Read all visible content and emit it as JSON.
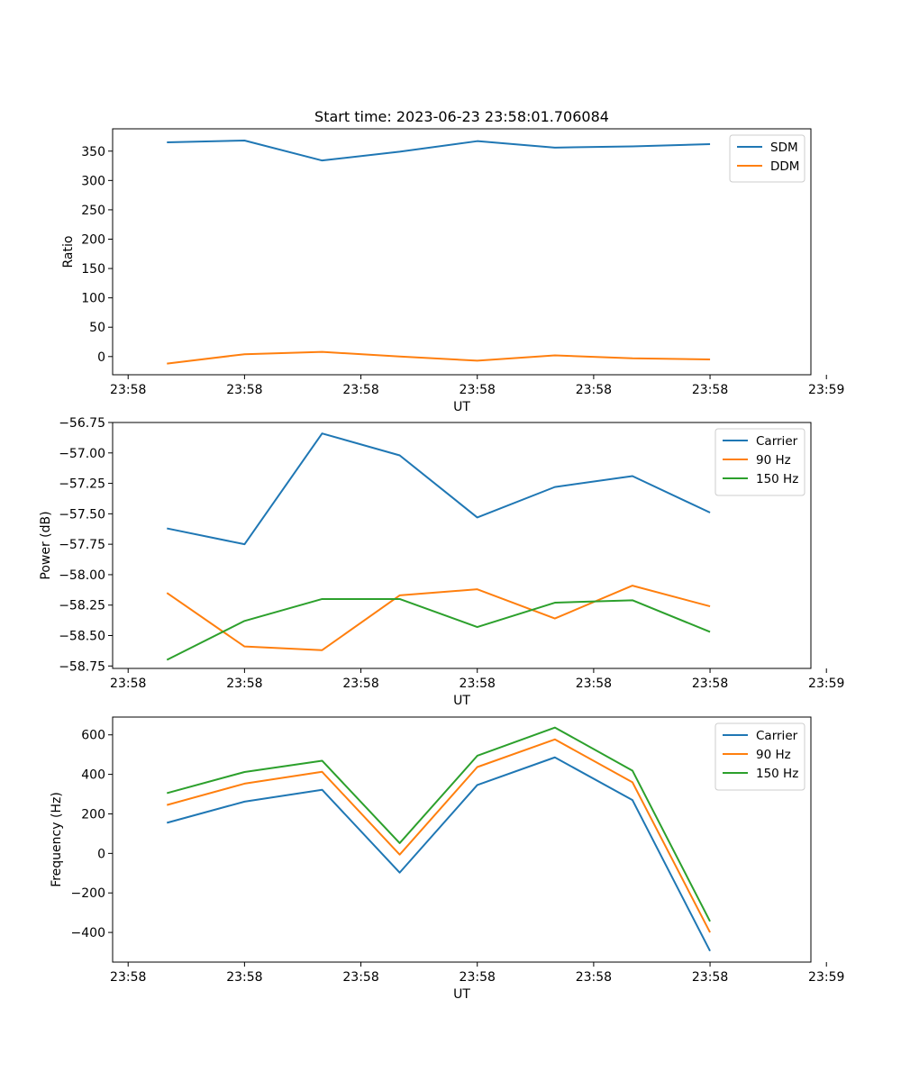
{
  "figure_title": "Start time: 2023-06-23 23:58:01.706084",
  "colors": {
    "blue": "#1f77b4",
    "orange": "#ff7f0e",
    "green": "#2ca02c"
  },
  "chart_data": [
    {
      "type": "line",
      "title": "Start time: 2023-06-23 23:58:01.706084",
      "xlabel": "UT",
      "ylabel": "Ratio",
      "x": [
        1,
        2,
        3,
        4,
        5,
        6,
        7,
        8
      ],
      "xlim": [
        0.3,
        9.3
      ],
      "x_ticks": [
        0.5,
        2,
        3.5,
        5,
        6.5,
        8,
        9.5
      ],
      "x_tick_labels": [
        "23:58",
        "23:58",
        "23:58",
        "23:58",
        "23:58",
        "23:58",
        "23:59"
      ],
      "ylim": [
        -31,
        388
      ],
      "y_ticks": [
        0,
        50,
        100,
        150,
        200,
        250,
        300,
        350
      ],
      "y_tick_labels": [
        "0",
        "50",
        "100",
        "150",
        "200",
        "250",
        "300",
        "350"
      ],
      "legend_position": "top-right",
      "series": [
        {
          "name": "SDM",
          "color": "#1f77b4",
          "values": [
            365,
            368,
            334,
            349,
            367,
            356,
            358,
            362
          ]
        },
        {
          "name": "DDM",
          "color": "#ff7f0e",
          "values": [
            -12,
            4,
            8,
            0,
            -7,
            2,
            -3,
            -5
          ]
        }
      ]
    },
    {
      "type": "line",
      "title": "",
      "xlabel": "UT",
      "ylabel": "Power (dB)",
      "x": [
        1,
        2,
        3,
        4,
        5,
        6,
        7,
        8
      ],
      "xlim": [
        0.3,
        9.3
      ],
      "x_ticks": [
        0.5,
        2,
        3.5,
        5,
        6.5,
        8,
        9.5
      ],
      "x_tick_labels": [
        "23:58",
        "23:58",
        "23:58",
        "23:58",
        "23:58",
        "23:58",
        "23:59"
      ],
      "ylim": [
        -58.77,
        -56.75
      ],
      "y_ticks": [
        -56.75,
        -57.0,
        -57.25,
        -57.5,
        -57.75,
        -58.0,
        -58.25,
        -58.5,
        -58.75
      ],
      "y_tick_labels": [
        "−56.75",
        "−57.00",
        "−57.25",
        "−57.50",
        "−57.75",
        "−58.00",
        "−58.25",
        "−58.50",
        "−58.75"
      ],
      "legend_position": "top-right",
      "series": [
        {
          "name": "Carrier",
          "color": "#1f77b4",
          "values": [
            -57.62,
            -57.75,
            -56.84,
            -57.02,
            -57.53,
            -57.28,
            -57.19,
            -57.49
          ]
        },
        {
          "name": "90 Hz",
          "color": "#ff7f0e",
          "values": [
            -58.15,
            -58.59,
            -58.62,
            -58.17,
            -58.12,
            -58.36,
            -58.09,
            -58.26
          ]
        },
        {
          "name": "150 Hz",
          "color": "#2ca02c",
          "values": [
            -58.7,
            -58.38,
            -58.2,
            -58.2,
            -58.43,
            -58.23,
            -58.21,
            -58.47
          ]
        }
      ]
    },
    {
      "type": "line",
      "title": "",
      "xlabel": "UT",
      "ylabel": "Frequency (Hz)",
      "x": [
        1,
        2,
        3,
        4,
        5,
        6,
        7,
        8
      ],
      "xlim": [
        0.3,
        9.3
      ],
      "x_ticks": [
        0.5,
        2,
        3.5,
        5,
        6.5,
        8,
        9.5
      ],
      "x_tick_labels": [
        "23:58",
        "23:58",
        "23:58",
        "23:58",
        "23:58",
        "23:58",
        "23:59"
      ],
      "ylim": [
        -550,
        690
      ],
      "y_ticks": [
        600,
        400,
        200,
        0,
        -200,
        -400
      ],
      "y_tick_labels": [
        "600",
        "400",
        "200",
        "0",
        "−200",
        "−400"
      ],
      "legend_position": "top-right",
      "series": [
        {
          "name": "Carrier",
          "color": "#1f77b4",
          "values": [
            155,
            262,
            322,
            -97,
            346,
            486,
            270,
            -494
          ]
        },
        {
          "name": "90 Hz",
          "color": "#ff7f0e",
          "values": [
            245,
            353,
            413,
            -6,
            437,
            577,
            360,
            -400
          ]
        },
        {
          "name": "150 Hz",
          "color": "#2ca02c",
          "values": [
            305,
            412,
            469,
            52,
            494,
            637,
            419,
            -344
          ]
        }
      ]
    }
  ]
}
